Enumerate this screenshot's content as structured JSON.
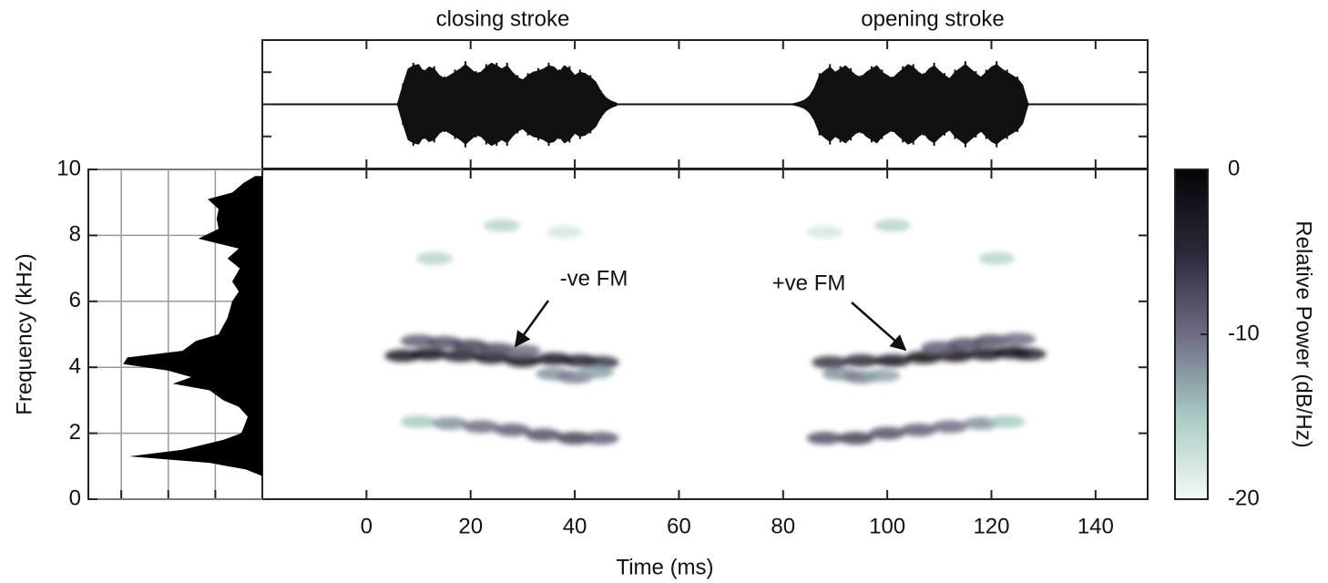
{
  "chart_data": {
    "type": "spectrogram",
    "labels": {
      "closing": "closing stroke",
      "opening": "opening stroke",
      "xlabel": "Time (ms)",
      "ylabel": "Frequency (kHz)",
      "clabel": "Relative Power (dB/Hz)",
      "neg_fm": "-ve FM",
      "pos_fm": "+ve FM"
    },
    "xlim": [
      -20,
      150
    ],
    "xticks": [
      0,
      20,
      40,
      60,
      80,
      100,
      120,
      140
    ],
    "ylim": [
      0,
      10
    ],
    "yticks": [
      0,
      2,
      4,
      6,
      8,
      10
    ],
    "clim": [
      -20,
      0
    ],
    "cticks": [
      0,
      -10,
      -20
    ],
    "colormap": [
      "#f4faf8",
      "#a9cbc4",
      "#6e6c84",
      "#2a2838",
      "#050508"
    ],
    "ridges": [
      {
        "x": [
          7,
          12,
          18,
          24,
          30,
          36,
          41,
          45
        ],
        "y": [
          4.35,
          4.4,
          4.35,
          4.3,
          4.2,
          4.25,
          4.2,
          4.15
        ],
        "power": [
          -3,
          -2,
          -4,
          -2,
          -1,
          -3,
          -4,
          -6
        ]
      },
      {
        "x": [
          10,
          15,
          20,
          25,
          30
        ],
        "y": [
          4.8,
          4.75,
          4.65,
          4.55,
          4.5
        ],
        "power": [
          -9,
          -8,
          -7,
          -8,
          -10
        ]
      },
      {
        "x": [
          36,
          40,
          44
        ],
        "y": [
          3.8,
          3.7,
          3.85
        ],
        "power": [
          -12,
          -11,
          -13
        ]
      },
      {
        "x": [
          10,
          16,
          22,
          28,
          34,
          40,
          45
        ],
        "y": [
          2.35,
          2.3,
          2.2,
          2.1,
          1.95,
          1.85,
          1.85
        ],
        "power": [
          -15,
          -12,
          -10,
          -9,
          -8,
          -7,
          -9
        ]
      },
      {
        "x": [
          13,
          26,
          38
        ],
        "y": [
          7.3,
          8.3,
          8.1
        ],
        "power": [
          -16,
          -16,
          -18
        ]
      },
      {
        "x": [
          89,
          95,
          101,
          107,
          113,
          119,
          124,
          127
        ],
        "y": [
          4.15,
          4.2,
          4.2,
          4.3,
          4.35,
          4.4,
          4.45,
          4.4
        ],
        "power": [
          -6,
          -5,
          -3,
          -1,
          -2,
          -3,
          -2,
          -4
        ]
      },
      {
        "x": [
          110,
          115,
          120,
          125
        ],
        "y": [
          4.6,
          4.7,
          4.8,
          4.85
        ],
        "power": [
          -9,
          -8,
          -8,
          -10
        ]
      },
      {
        "x": [
          91,
          95,
          99
        ],
        "y": [
          3.8,
          3.7,
          3.75
        ],
        "power": [
          -12,
          -11,
          -13
        ]
      },
      {
        "x": [
          88,
          94,
          100,
          106,
          112,
          118,
          123
        ],
        "y": [
          1.85,
          1.85,
          2.0,
          2.1,
          2.2,
          2.3,
          2.35
        ],
        "power": [
          -8,
          -7,
          -8,
          -9,
          -10,
          -12,
          -15
        ]
      },
      {
        "x": [
          88,
          101,
          121
        ],
        "y": [
          8.1,
          8.3,
          7.3
        ],
        "power": [
          -18,
          -16,
          -16
        ]
      }
    ],
    "wave_ylim": [
      -1,
      1
    ],
    "wave_yticks": [
      -0.5,
      0,
      0.5
    ],
    "waveform": [
      {
        "x": [
          6,
          7,
          8,
          9,
          10,
          11,
          12,
          13,
          14,
          15,
          16,
          17,
          18,
          19,
          20,
          21,
          22,
          23,
          24,
          25,
          26,
          27,
          28,
          29,
          30,
          31,
          32,
          33,
          34,
          35,
          36,
          37,
          38,
          39,
          40,
          41,
          42,
          43,
          44,
          45,
          46,
          47,
          48
        ],
        "amplitude": [
          0.02,
          0.3,
          0.55,
          0.6,
          0.62,
          0.5,
          0.58,
          0.55,
          0.45,
          0.4,
          0.45,
          0.5,
          0.55,
          0.62,
          0.55,
          0.48,
          0.5,
          0.58,
          0.64,
          0.6,
          0.55,
          0.6,
          0.5,
          0.42,
          0.38,
          0.45,
          0.5,
          0.52,
          0.55,
          0.6,
          0.58,
          0.5,
          0.6,
          0.55,
          0.45,
          0.5,
          0.48,
          0.42,
          0.35,
          0.2,
          0.1,
          0.05,
          0.02
        ]
      },
      {
        "x": [
          82,
          83,
          84,
          85,
          86,
          87,
          88,
          89,
          90,
          91,
          92,
          93,
          94,
          95,
          96,
          97,
          98,
          99,
          100,
          101,
          102,
          103,
          104,
          105,
          106,
          107,
          108,
          109,
          110,
          111,
          112,
          113,
          114,
          115,
          116,
          117,
          118,
          119,
          120,
          121,
          122,
          123,
          124,
          125,
          126,
          127
        ],
        "amplitude": [
          0.01,
          0.03,
          0.06,
          0.12,
          0.25,
          0.45,
          0.52,
          0.58,
          0.5,
          0.55,
          0.6,
          0.52,
          0.45,
          0.42,
          0.5,
          0.55,
          0.6,
          0.5,
          0.45,
          0.4,
          0.48,
          0.55,
          0.62,
          0.58,
          0.5,
          0.45,
          0.55,
          0.6,
          0.52,
          0.45,
          0.4,
          0.5,
          0.56,
          0.62,
          0.55,
          0.48,
          0.42,
          0.5,
          0.58,
          0.62,
          0.55,
          0.5,
          0.45,
          0.4,
          0.3,
          0.02
        ]
      }
    ],
    "spectrum_xlim": [
      0,
      3.7
    ],
    "spectrum_xticks": [
      1,
      2,
      3
    ],
    "spectrum": {
      "frequency": [
        0.7,
        0.9,
        1.1,
        1.3,
        1.5,
        1.8,
        2.0,
        2.2,
        2.5,
        2.8,
        3.0,
        3.3,
        3.5,
        3.7,
        3.9,
        4.1,
        4.3,
        4.5,
        4.8,
        5.0,
        5.5,
        6.0,
        6.3,
        6.6,
        7.0,
        7.3,
        7.6,
        7.9,
        8.2,
        8.5,
        8.8,
        9.1,
        9.3,
        9.6,
        9.8
      ],
      "level": [
        0,
        0.35,
        1.12,
        2.83,
        1.7,
        0.83,
        0.45,
        0.39,
        0.31,
        0.5,
        0.83,
        1.12,
        1.9,
        1.51,
        2.0,
        2.96,
        2.87,
        1.7,
        1.41,
        0.93,
        0.74,
        0.64,
        0.5,
        0.64,
        0.48,
        0.74,
        0.5,
        1.36,
        0.93,
        0.97,
        0.93,
        1.16,
        0.64,
        0.39,
        0.15
      ]
    }
  }
}
